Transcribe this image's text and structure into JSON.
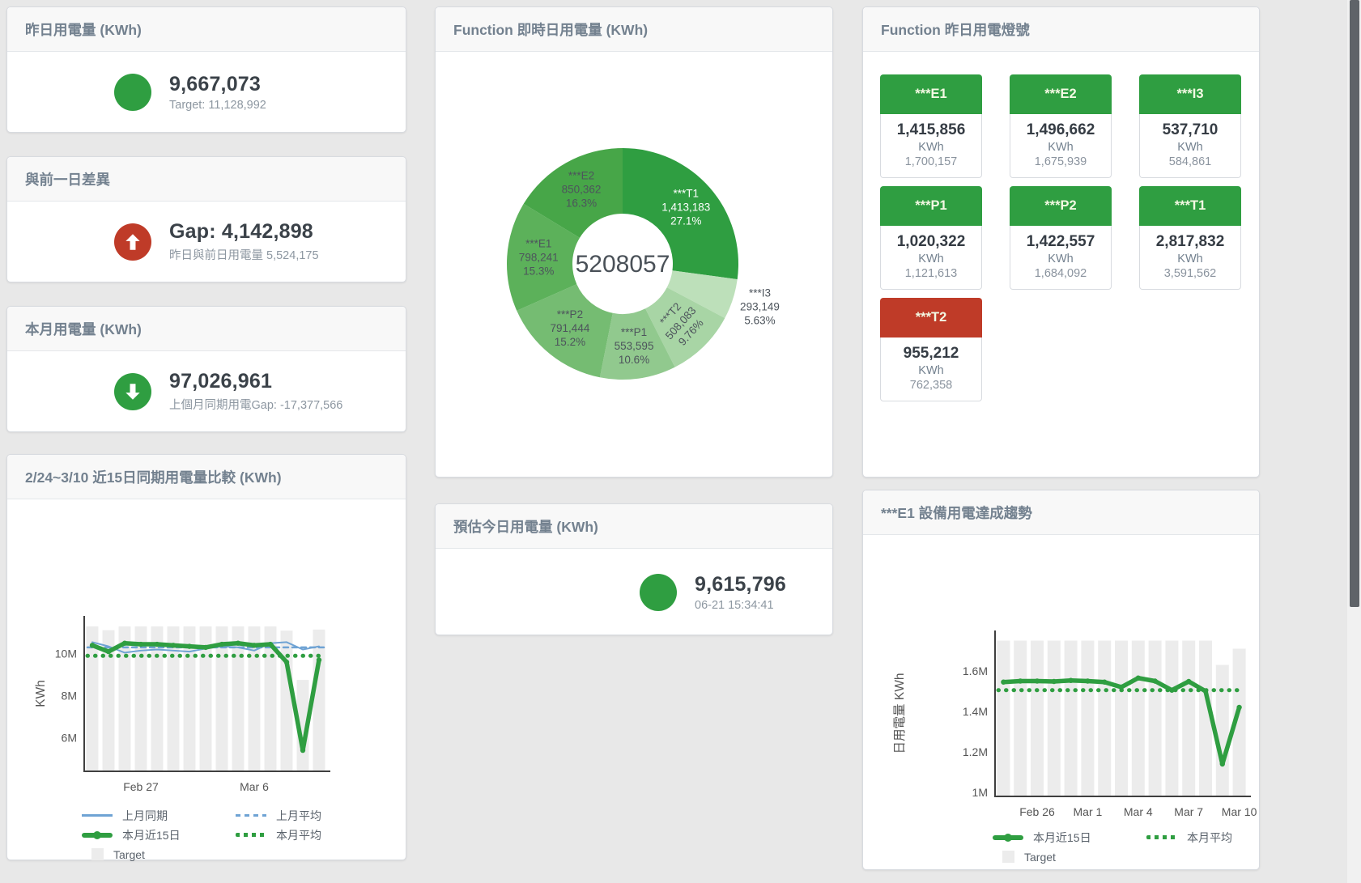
{
  "page": {
    "background": "#e8e8e8"
  },
  "colors": {
    "green": "#2f9e41",
    "red": "#bf3b28",
    "blue_line": "#6fa3d4",
    "target_bar": "#ececec",
    "axis": "#3f3f3f",
    "tile_header_text": "#f3f9e3"
  },
  "kpi": {
    "yesterday": {
      "title": "昨日用電量 (KWh)",
      "value": "9,667,073",
      "subtext": "Target: 11,128,992",
      "icon": "circle",
      "icon_color": "#2f9e41"
    },
    "day_gap": {
      "title": "與前一日差異",
      "value": "Gap: 4,142,898",
      "subtext": "昨日與前日用電量 5,524,175",
      "icon": "arrow-up",
      "icon_color": "#bf3b28"
    },
    "month": {
      "title": "本月用電量 (KWh)",
      "value": "97,026,961",
      "subtext": "上個月同期用電Gap: -17,377,566",
      "icon": "arrow-down",
      "icon_color": "#2f9e41"
    },
    "estimate": {
      "title": "預估今日用電量 (KWh)",
      "value": "9,615,796",
      "subtext": "06-21 15:34:41",
      "icon": "circle",
      "icon_color": "#2f9e41"
    }
  },
  "lights": {
    "title": "Function 昨日用電燈號",
    "tiles": [
      {
        "label": "***E1",
        "value": "1,415,856",
        "unit": "KWh",
        "target": "1,700,157",
        "status": "green"
      },
      {
        "label": "***E2",
        "value": "1,496,662",
        "unit": "KWh",
        "target": "1,675,939",
        "status": "green"
      },
      {
        "label": "***I3",
        "value": "537,710",
        "unit": "KWh",
        "target": "584,861",
        "status": "green"
      },
      {
        "label": "***P1",
        "value": "1,020,322",
        "unit": "KWh",
        "target": "1,121,613",
        "status": "green"
      },
      {
        "label": "***P2",
        "value": "1,422,557",
        "unit": "KWh",
        "target": "1,684,092",
        "status": "green"
      },
      {
        "label": "***T1",
        "value": "2,817,832",
        "unit": "KWh",
        "target": "3,591,562",
        "status": "green"
      },
      {
        "label": "***T2",
        "value": "955,212",
        "unit": "KWh",
        "target": "762,358",
        "status": "red"
      }
    ]
  },
  "chart_data": [
    {
      "id": "donut",
      "type": "pie",
      "title": "Function 即時日用電量 (KWh)",
      "center_label": "5208057",
      "legend_position": "none",
      "slices": [
        {
          "name": "***T1",
          "value": 1413183,
          "value_label": "1,413,183",
          "pct": 27.1,
          "pct_label": "27.1%",
          "color": "#2f9e41",
          "text": "#ffffff"
        },
        {
          "name": "***I3",
          "value": 293149,
          "value_label": "293,149",
          "pct": 5.63,
          "pct_label": "5.63%",
          "color": "#bde0ba",
          "text": "#4d545c",
          "outside": true
        },
        {
          "name": "***T2",
          "value": 508083,
          "value_label": "508,083",
          "pct": 9.76,
          "pct_label": "9.76%",
          "color": "#a8d5a5",
          "text": "#4d545c",
          "rotate": -48
        },
        {
          "name": "***P1",
          "value": 553595,
          "value_label": "553,595",
          "pct": 10.6,
          "pct_label": "10.6%",
          "color": "#91c98e",
          "text": "#4d545c"
        },
        {
          "name": "***P2",
          "value": 791444,
          "value_label": "791,444",
          "pct": 15.2,
          "pct_label": "15.2%",
          "color": "#75bc72",
          "text": "#4d545c"
        },
        {
          "name": "***E1",
          "value": 798241,
          "value_label": "798,241",
          "pct": 15.3,
          "pct_label": "15.3%",
          "color": "#5cb15a",
          "text": "#4d545c"
        },
        {
          "name": "***E2",
          "value": 850362,
          "value_label": "850,362",
          "pct": 16.3,
          "pct_label": "16.3%",
          "color": "#47a648",
          "text": "#4d545c"
        }
      ]
    },
    {
      "id": "chart1",
      "type": "line",
      "title": "2/24~3/10 近15日同期用電量比較 (KWh)",
      "ylabel": "KWh",
      "ylim": [
        4.4,
        11.8
      ],
      "grid": false,
      "yticks": [
        {
          "v": 6,
          "label": "6M"
        },
        {
          "v": 8,
          "label": "8M"
        },
        {
          "v": 10,
          "label": "10M"
        }
      ],
      "xticks": [
        {
          "i": 3,
          "label": "Feb 27"
        },
        {
          "i": 10,
          "label": "Mar 6"
        }
      ],
      "target_bars": [
        11.3,
        11.12,
        11.3,
        11.3,
        11.3,
        11.3,
        11.3,
        11.3,
        11.3,
        11.3,
        11.3,
        11.3,
        11.1,
        8.75,
        11.15
      ],
      "series": [
        {
          "name": "上月同期",
          "style": "solid-blue",
          "values": [
            10.55,
            10.35,
            10.05,
            10.15,
            10.2,
            10.15,
            10.1,
            10.25,
            10.35,
            10.3,
            10.15,
            10.5,
            10.55,
            10.2,
            10.35
          ]
        },
        {
          "name": "上月平均",
          "style": "dashed-blue",
          "const": 10.3
        },
        {
          "name": "本月近15日",
          "style": "thick-green",
          "values": [
            10.4,
            10.1,
            10.5,
            10.45,
            10.45,
            10.4,
            10.35,
            10.3,
            10.45,
            10.5,
            10.4,
            10.45,
            9.6,
            5.4,
            9.7
          ]
        },
        {
          "name": "本月平均",
          "style": "dotted-green",
          "const": 9.9
        }
      ],
      "bar_legend": "Target"
    },
    {
      "id": "chart2",
      "type": "line",
      "title": "***E1 設備用電達成趨勢",
      "ylabel": "日用電量 KWh",
      "ylim": [
        0.98,
        1.8
      ],
      "grid": false,
      "yticks": [
        {
          "v": 1,
          "label": "1M"
        },
        {
          "v": 1.2,
          "label": "1.2M"
        },
        {
          "v": 1.4,
          "label": "1.4M"
        },
        {
          "v": 1.6,
          "label": "1.6M"
        }
      ],
      "xticks": [
        {
          "i": 2,
          "label": "Feb 26"
        },
        {
          "i": 5,
          "label": "Mar 1"
        },
        {
          "i": 8,
          "label": "Mar 4"
        },
        {
          "i": 11,
          "label": "Mar 7"
        },
        {
          "i": 14,
          "label": "Mar 10"
        }
      ],
      "target_bars": [
        1.75,
        1.75,
        1.75,
        1.75,
        1.75,
        1.75,
        1.75,
        1.75,
        1.75,
        1.75,
        1.75,
        1.75,
        1.75,
        1.63,
        1.71
      ],
      "series": [
        {
          "name": "本月近15日",
          "style": "thick-green",
          "values": [
            1.545,
            1.55,
            1.55,
            1.548,
            1.553,
            1.55,
            1.545,
            1.52,
            1.565,
            1.55,
            1.505,
            1.548,
            1.5,
            1.14,
            1.42
          ]
        },
        {
          "name": "本月平均",
          "style": "dotted-green",
          "const": 1.505
        }
      ],
      "bar_legend": "Target"
    }
  ]
}
